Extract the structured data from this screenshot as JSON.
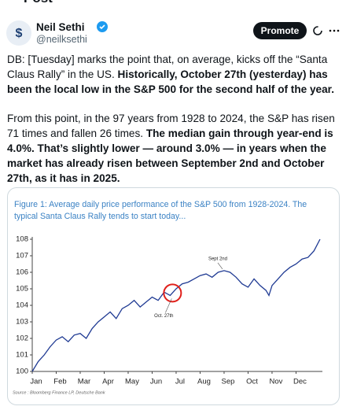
{
  "header": {
    "title": "Post"
  },
  "post": {
    "name": "Neil Sethi",
    "handle": "@neilksethi",
    "button": "Promote",
    "paragraphs": [
      [
        {
          "text": "DB: [Tuesday] marks the point that, on average, kicks off the “Santa Claus Rally” in the US. ",
          "bold": false
        },
        {
          "text": "Historically, October 27th (yesterday) has been the local low in the S&P 500 for the second half of the year.",
          "bold": true
        }
      ],
      [
        {
          "text": "From this point, in the 97 years from 1928 to 2024, the S&P has risen 71 times and fallen 26 times. ",
          "bold": false
        },
        {
          "text": "The median gain through year-end is 4.0%. That’s slightly lower — around 3.0% — in years when the market has already risen between September 2nd and October 27th, as it has in 2025.",
          "bold": true
        }
      ]
    ]
  },
  "chart_data": {
    "type": "line",
    "title": "Figure 1: Average daily price performance of the S&P 500 from 1928-2024. The typical Santa Claus Rally tends to start today...",
    "source": "Source : Bloomberg Finance LP, Deutsche Bank",
    "annotations": [
      "Sept 2nd",
      "Oct. 27th"
    ],
    "x": [
      0,
      0.25,
      0.5,
      0.75,
      1,
      1.25,
      1.5,
      1.75,
      2,
      2.25,
      2.5,
      2.75,
      3,
      3.25,
      3.5,
      3.75,
      4,
      4.25,
      4.5,
      4.75,
      5,
      5.25,
      5.5,
      5.75,
      6,
      6.25,
      6.5,
      6.75,
      7,
      7.25,
      7.5,
      7.75,
      8,
      8.25,
      8.5,
      8.75,
      9,
      9.25,
      9.5,
      9.75,
      9.87,
      10,
      10.25,
      10.5,
      10.75,
      11,
      11.25,
      11.5,
      11.75,
      12
    ],
    "series": [
      {
        "name": "S&P 500",
        "color": "#1f3a93",
        "values": [
          100.0,
          100.6,
          101.0,
          101.5,
          101.9,
          102.1,
          101.8,
          102.2,
          102.3,
          102.0,
          102.6,
          103.0,
          103.3,
          103.6,
          103.2,
          103.8,
          104.0,
          104.3,
          103.9,
          104.2,
          104.5,
          104.3,
          104.8,
          104.6,
          105.0,
          105.3,
          105.4,
          105.6,
          105.8,
          105.9,
          105.7,
          106.0,
          106.1,
          106.0,
          105.7,
          105.3,
          105.1,
          105.6,
          105.2,
          104.9,
          104.6,
          105.2,
          105.6,
          106.0,
          106.3,
          106.5,
          106.8,
          106.9,
          107.3,
          108.0
        ]
      }
    ],
    "xlim": [
      0,
      12.1
    ],
    "xticks": [
      {
        "value": 0,
        "label": "Jan"
      },
      {
        "value": 1,
        "label": "Feb"
      },
      {
        "value": 2,
        "label": "Mar"
      },
      {
        "value": 3,
        "label": "Apr"
      },
      {
        "value": 4,
        "label": "May"
      },
      {
        "value": 5,
        "label": "Jun"
      },
      {
        "value": 6,
        "label": "Jul"
      },
      {
        "value": 7,
        "label": "Aug"
      },
      {
        "value": 8,
        "label": "Sep"
      },
      {
        "value": 9,
        "label": "Oct"
      },
      {
        "value": 10,
        "label": "Nov"
      },
      {
        "value": 11,
        "label": "Dec"
      }
    ],
    "ylim": [
      100,
      108
    ],
    "yticks": [
      100,
      101,
      102,
      103,
      104,
      105,
      106,
      107,
      108
    ],
    "grid": false
  }
}
